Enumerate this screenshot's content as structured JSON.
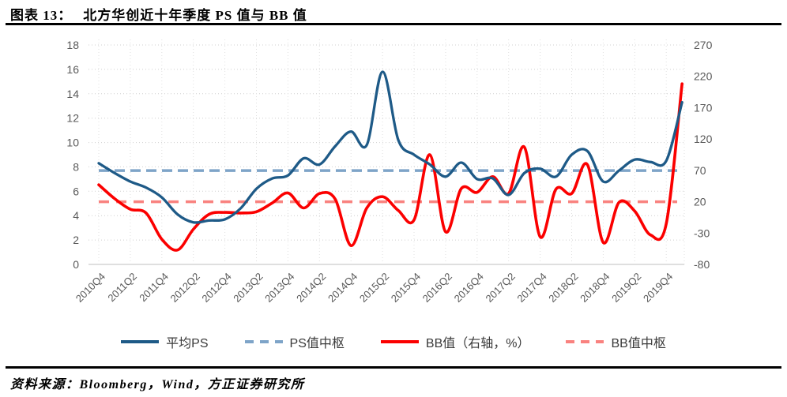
{
  "header": {
    "label": "图表 13：",
    "title": "北方华创近十年季度 PS 值与 BB 值"
  },
  "footer": {
    "source": "资料来源：Bloomberg，Wind，方正证券研究所"
  },
  "colors": {
    "ps_line": "#1e5a87",
    "ps_center": "#7ea4c8",
    "bb_line": "#fb0000",
    "bb_center": "#f9827f",
    "grid": "#cfcfcf",
    "grid_vertical": "#e0e0e0",
    "axis_zero_line": "#bfbfbf",
    "tick_text": "#595959",
    "legend_text": "#3a3a3a",
    "rule": "#000000"
  },
  "chart_data": {
    "type": "line",
    "x": [
      "2010Q4",
      "2011Q1",
      "2011Q2",
      "2011Q3",
      "2011Q4",
      "2012Q1",
      "2012Q2",
      "2012Q3",
      "2012Q4",
      "2013Q1",
      "2013Q2",
      "2013Q3",
      "2013Q4",
      "2014Q1",
      "2014Q2",
      "2014Q3",
      "2014Q4",
      "2015Q1",
      "2015Q2",
      "2015Q3",
      "2015Q4",
      "2016Q1",
      "2016Q2",
      "2016Q3",
      "2016Q4",
      "2017Q1",
      "2017Q2",
      "2017Q3",
      "2017Q4",
      "2018Q1",
      "2018Q2",
      "2018Q3",
      "2018Q4",
      "2019Q1",
      "2019Q2",
      "2019Q3",
      "2019Q4",
      "2020Q1"
    ],
    "x_tick_labels": [
      "2010Q4",
      "2011Q2",
      "2011Q4",
      "2012Q2",
      "2012Q4",
      "2013Q2",
      "2013Q4",
      "2014Q2",
      "2014Q4",
      "2015Q2",
      "2015Q4",
      "2016Q2",
      "2016Q4",
      "2017Q2",
      "2017Q4",
      "2018Q2",
      "2018Q4",
      "2019Q2",
      "2019Q4"
    ],
    "left_axis": {
      "min": 0,
      "max": 18,
      "step": 2,
      "ticks": [
        0,
        2,
        4,
        6,
        8,
        10,
        12,
        14,
        16,
        18
      ]
    },
    "right_axis": {
      "min": -80,
      "max": 270,
      "step": 50,
      "ticks": [
        270,
        220,
        170,
        120,
        70,
        20,
        -30,
        -80
      ]
    },
    "grid": "dotted horizontal + faint dotted vertical",
    "legend_position": "bottom",
    "series": [
      {
        "name": "平均PS",
        "axis": "left",
        "style": "solid",
        "color": "#1e5a87",
        "values": [
          8.3,
          7.5,
          6.8,
          6.3,
          5.5,
          4.1,
          3.45,
          3.6,
          3.7,
          4.6,
          6.2,
          7.05,
          7.3,
          8.7,
          8.2,
          9.7,
          10.9,
          9.8,
          15.8,
          10.2,
          9.0,
          8.2,
          7.2,
          8.35,
          7.0,
          7.05,
          5.7,
          7.5,
          7.85,
          7.2,
          9.0,
          9.3,
          6.8,
          7.7,
          8.6,
          8.4,
          8.5,
          13.3
        ]
      },
      {
        "name": "PS值中枢",
        "axis": "left",
        "style": "dashed",
        "color": "#7ea4c8",
        "value": 7.7
      },
      {
        "name": "BB值（右轴，%）",
        "axis": "right",
        "style": "solid",
        "color": "#fb0000",
        "values": [
          47,
          25,
          8,
          2,
          -40,
          -57,
          -24,
          0,
          3,
          2,
          4,
          18,
          34,
          10,
          33,
          24,
          -50,
          10,
          28,
          6,
          -9,
          95,
          -28,
          41,
          35,
          60,
          33,
          107,
          -36,
          40,
          33,
          79,
          -45,
          19,
          5,
          -33,
          -15,
          208
        ]
      },
      {
        "name": "BB值中枢",
        "axis": "right",
        "style": "dashed",
        "color": "#f9827f",
        "value": 20
      }
    ]
  }
}
